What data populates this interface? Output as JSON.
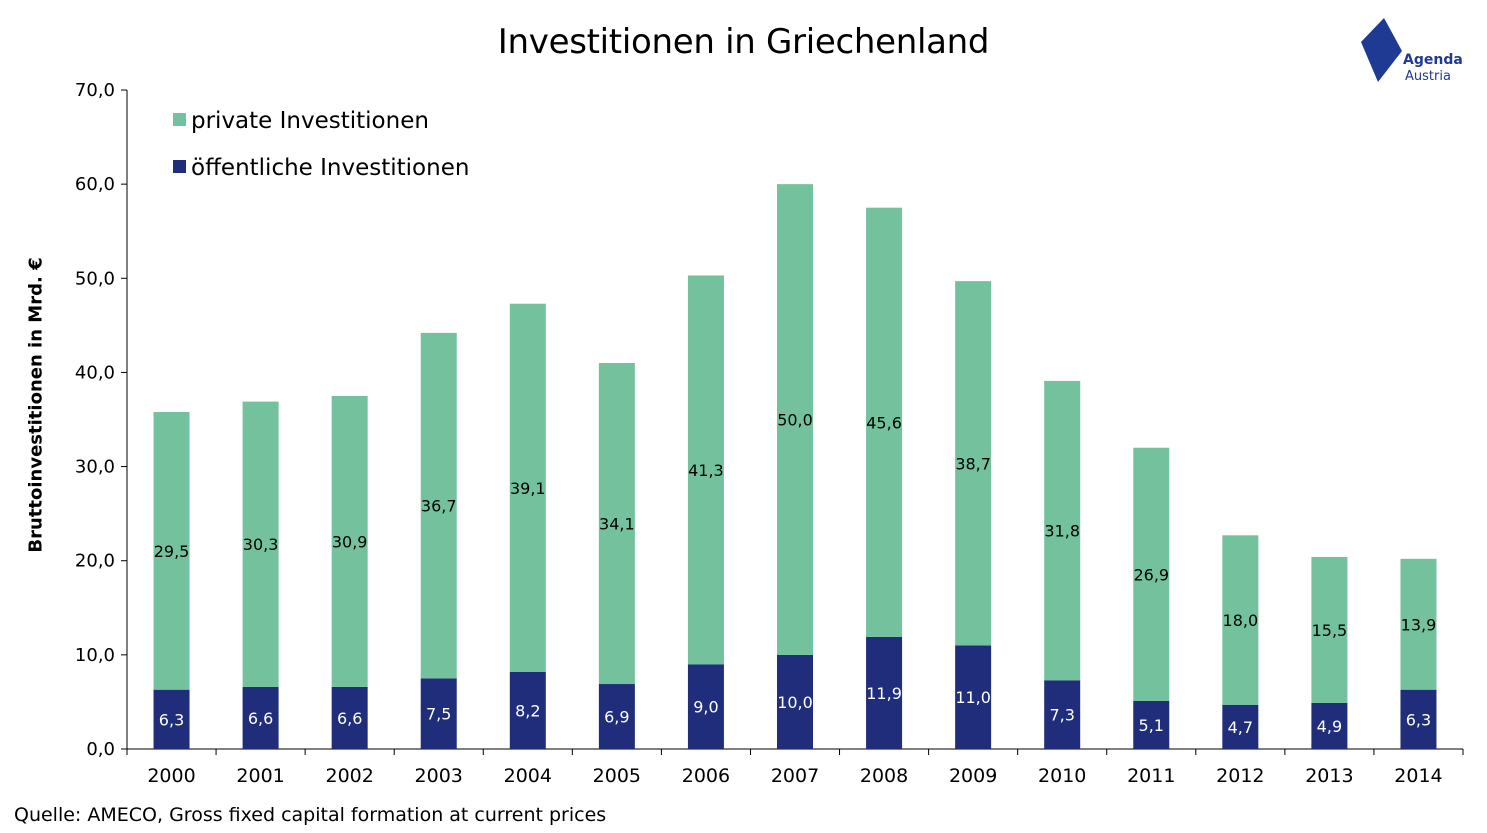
{
  "logo": {
    "line1": "Agenda",
    "line2": "Austria",
    "color": "#1f3a93"
  },
  "source": "Quelle: AMECO, Gross fixed capital formation at current prices",
  "chart_data": {
    "type": "bar",
    "stacked": true,
    "title": "Investitionen in Griechenland",
    "ylabel": "Bruttoinvestitionen in Mrd. €",
    "xlabel": "",
    "ylim": [
      0,
      70
    ],
    "yticks": [
      "0,0",
      "10,0",
      "20,0",
      "30,0",
      "40,0",
      "50,0",
      "60,0",
      "70,0"
    ],
    "grid": false,
    "legend_position": "top-left",
    "categories": [
      "2000",
      "2001",
      "2002",
      "2003",
      "2004",
      "2005",
      "2006",
      "2007",
      "2008",
      "2009",
      "2010",
      "2011",
      "2012",
      "2013",
      "2014"
    ],
    "series": [
      {
        "name": "öffentliche Investitionen",
        "color": "#1f2d7b",
        "values": [
          6.3,
          6.6,
          6.6,
          7.5,
          8.2,
          6.9,
          9.0,
          10.0,
          11.9,
          11.0,
          7.3,
          5.1,
          4.7,
          4.9,
          6.3
        ],
        "labels": [
          "6,3",
          "6,6",
          "6,6",
          "7,5",
          "8,2",
          "6,9",
          "9,0",
          "10,0",
          "11,9",
          "11,0",
          "7,3",
          "5,1",
          "4,7",
          "4,9",
          "6,3"
        ]
      },
      {
        "name": "private Investitionen",
        "color": "#74c29d",
        "values": [
          29.5,
          30.3,
          30.9,
          36.7,
          39.1,
          34.1,
          41.3,
          50.0,
          45.6,
          38.7,
          31.8,
          26.9,
          18.0,
          15.5,
          13.9
        ],
        "labels": [
          "29,5",
          "30,3",
          "30,9",
          "36,7",
          "39,1",
          "34,1",
          "41,3",
          "50,0",
          "45,6",
          "38,7",
          "31,8",
          "26,9",
          "18,0",
          "15,5",
          "13,9"
        ]
      }
    ],
    "legend_order": [
      "private Investitionen",
      "öffentliche Investitionen"
    ]
  }
}
